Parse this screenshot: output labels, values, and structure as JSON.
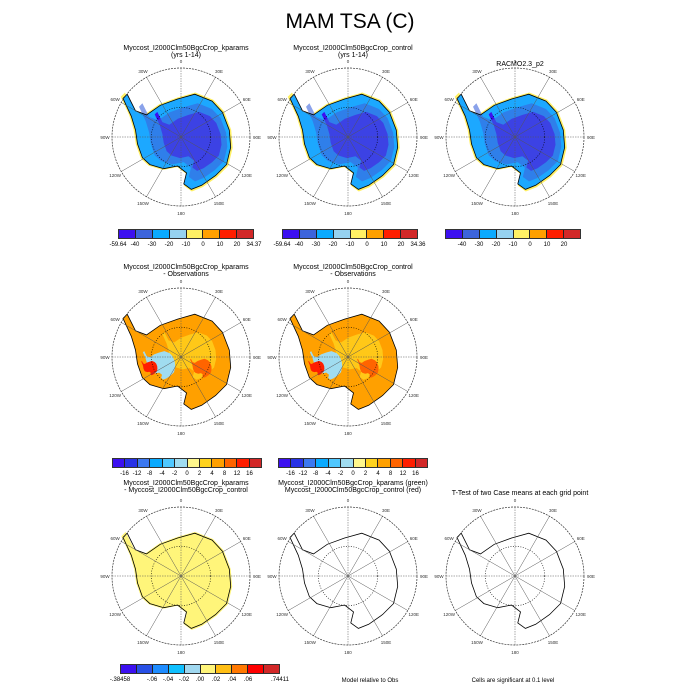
{
  "title": "MAM TSA (C)",
  "longitude_labels": [
    "0",
    "30E",
    "60E",
    "90E",
    "120E",
    "150E",
    "180",
    "150W",
    "120W",
    "90W",
    "60W",
    "30W"
  ],
  "panels": [
    {
      "title": "Myccost_I2000Clm50BgcCrop_kparams\n(yrs 1-14)",
      "fill": "cold"
    },
    {
      "title": "Myccost_I2000Clm50BgcCrop_control\n(yrs 1-14)",
      "fill": "cold"
    },
    {
      "title": "RACMO2.3_p2",
      "fill": "cold"
    },
    {
      "title": "Myccost_I2000Clm50BgcCrop_kparams\n- Observations",
      "fill": "bias"
    },
    {
      "title": "Myccost_I2000Clm50BgcCrop_control\n- Observations",
      "fill": "bias"
    },
    {
      "title": "Myccost_I2000Clm50BgcCrop_kparams\n- Myccost_I2000Clm50BgcCrop_control",
      "fill": "diff"
    },
    {
      "title": "Myccost_I2000Clm50BgcCrop_kparams (green)\nMyccost_I2000Clm50BgcCrop_control (red)",
      "fill": "none"
    },
    {
      "title": "T-Test of two Case means at each grid point",
      "fill": "none"
    }
  ],
  "colorbars": [
    {
      "colors": [
        "#3c10f0",
        "#3c64dc",
        "#0aaaff",
        "#96d2f0",
        "#fff064",
        "#ffa000",
        "#ff1e00",
        "#d22828"
      ],
      "labels": [
        "-59.64",
        "-40",
        "-30",
        "-20",
        "-10",
        "0",
        "10",
        "20",
        "34.37"
      ]
    },
    {
      "colors": [
        "#3c10f0",
        "#3c64dc",
        "#0aaaff",
        "#96d2f0",
        "#fff064",
        "#ffa000",
        "#ff1e00",
        "#d22828"
      ],
      "labels": [
        "-59.64",
        "-40",
        "-30",
        "-20",
        "-10",
        "0",
        "10",
        "20",
        "34.36"
      ]
    },
    {
      "colors": [
        "#3c10f0",
        "#3c64dc",
        "#0aaaff",
        "#96d2f0",
        "#fff064",
        "#ffa000",
        "#ff1e00",
        "#d22828"
      ],
      "labels": [
        "",
        "-40",
        "-30",
        "-20",
        "-10",
        "0",
        "10",
        "20",
        ""
      ]
    },
    {
      "colors": [
        "#3c10f0",
        "#2832e6",
        "#3c78f0",
        "#0aaaff",
        "#50c8ff",
        "#a0dcf0",
        "#fff78c",
        "#ffd21e",
        "#ffa000",
        "#ff6400",
        "#ff1e00",
        "#d22828"
      ],
      "labels": [
        "",
        "-16",
        "-12",
        "-8",
        "-4",
        "-2",
        "0",
        "2",
        "4",
        "8",
        "12",
        "16",
        ""
      ]
    },
    {
      "colors": [
        "#3c10f0",
        "#2832e6",
        "#3c78f0",
        "#0aaaff",
        "#50c8ff",
        "#a0dcf0",
        "#fff78c",
        "#ffd21e",
        "#ffa000",
        "#ff6400",
        "#ff1e00",
        "#d22828"
      ],
      "labels": [
        "",
        "-16",
        "-12",
        "-8",
        "-4",
        "-2",
        "0",
        "2",
        "4",
        "8",
        "12",
        "16",
        ""
      ]
    },
    {
      "colors": [
        "#3c10f0",
        "#2850e6",
        "#1e8cff",
        "#10c0ff",
        "#a0d8f0",
        "#fff57a",
        "#ffbe14",
        "#ff7800",
        "#ff0000",
        "#d22828"
      ],
      "labels": [
        "-.38458",
        "",
        "-.06",
        "-.04",
        "-.02",
        ".00",
        ".02",
        ".04",
        ".06",
        "",
        ".74411"
      ]
    }
  ],
  "notes": {
    "model_relative": "Model relative to Obs",
    "significance": "Cells are significant at 0.1 level"
  }
}
